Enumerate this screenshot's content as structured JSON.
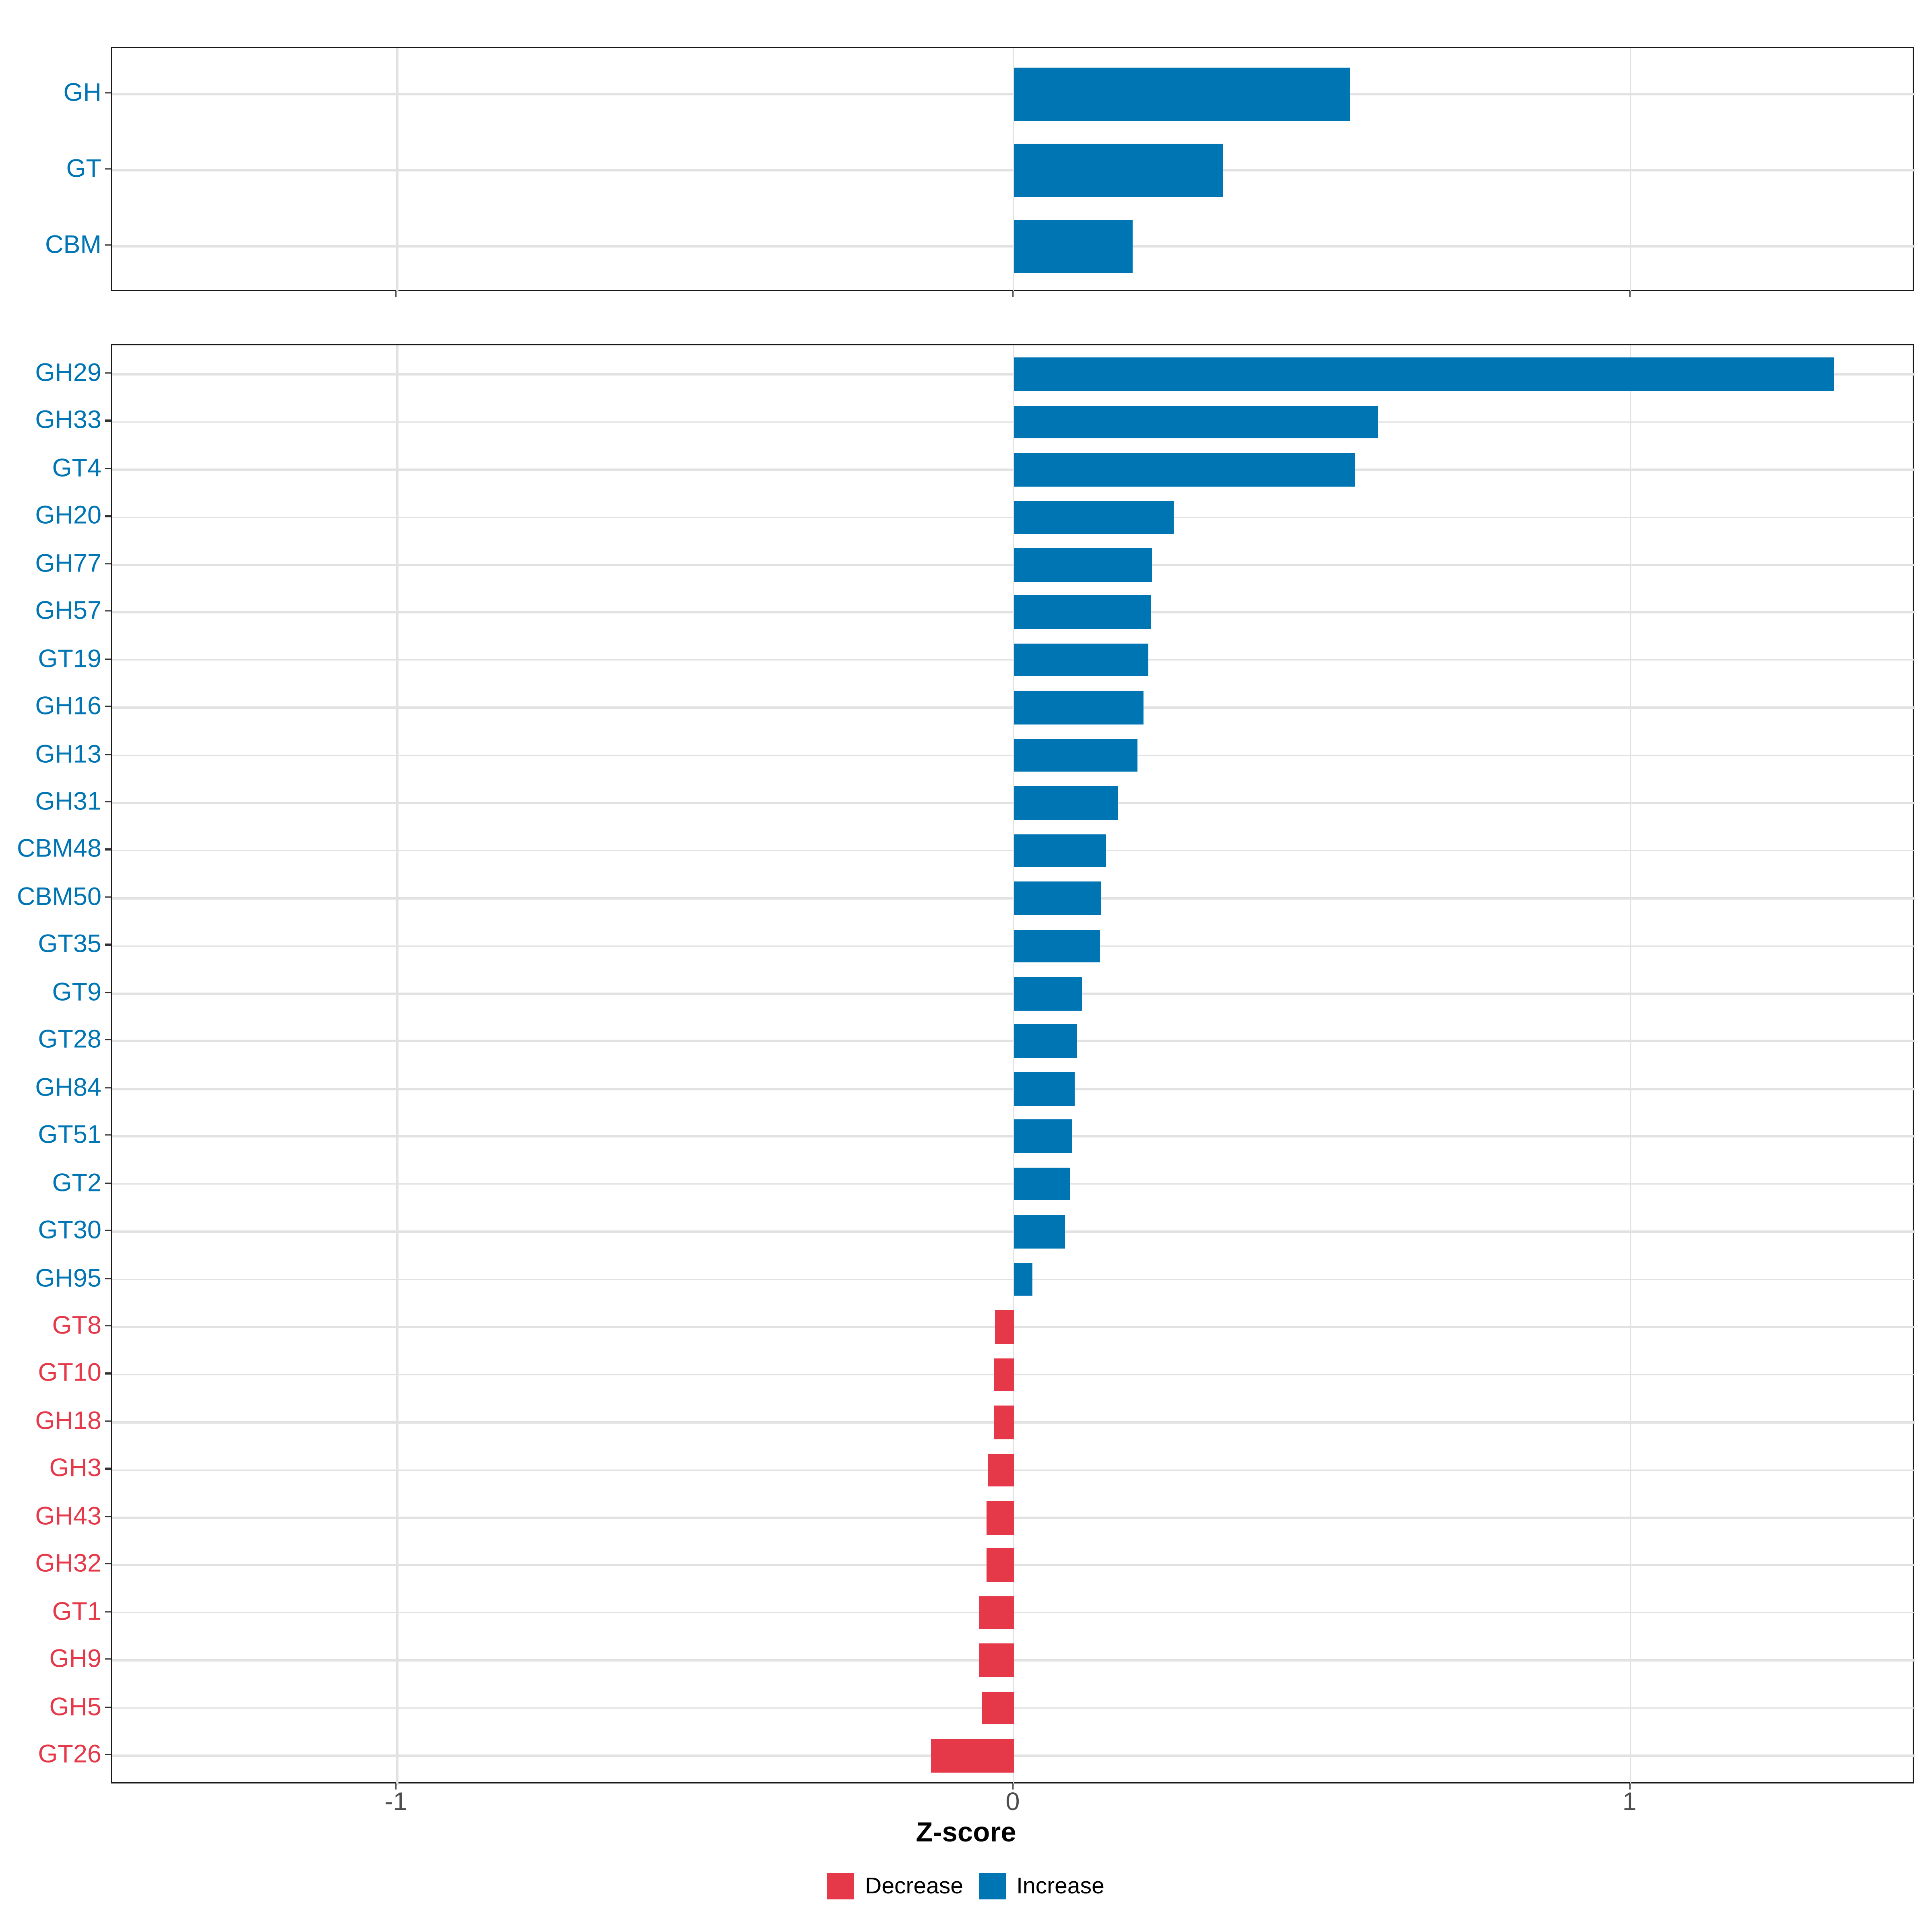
{
  "palette": {
    "increase": "#0075B4",
    "decrease": "#E5394A",
    "gridline": "#E2E2E2",
    "panel_border": "#1A1A1A",
    "tick_mark": "#333333",
    "axis_text": "#4D4D4D",
    "axis_title_color": "#000000",
    "legend_text": "#000000",
    "background": "#FFFFFF"
  },
  "x_axis": {
    "title": "Z-score",
    "tick_labels": [
      "-1",
      "0",
      "1"
    ],
    "tick_values": [
      -1,
      0,
      1
    ],
    "domain": [
      -1.462,
      1.462
    ]
  },
  "legend": {
    "items": [
      {
        "label": "Decrease",
        "direction": "decrease"
      },
      {
        "label": "Increase",
        "direction": "increase"
      }
    ]
  },
  "chart_data": [
    {
      "type": "bar",
      "orientation": "horizontal",
      "panel": "category-summary",
      "xlabel": "Z-score",
      "xlim": [
        -1.462,
        1.462
      ],
      "grid": true,
      "legend_position": "bottom",
      "categories": [
        "GH",
        "GT",
        "CBM"
      ],
      "values": [
        0.545,
        0.339,
        0.192
      ],
      "direction": [
        "increase",
        "increase",
        "increase"
      ]
    },
    {
      "type": "bar",
      "orientation": "horizontal",
      "panel": "cazyme-families",
      "xlabel": "Z-score",
      "xlim": [
        -1.462,
        1.462
      ],
      "grid": true,
      "legend_position": "bottom",
      "categories": [
        "GH29",
        "GH33",
        "GT4",
        "GH20",
        "GH77",
        "GH57",
        "GT19",
        "GH16",
        "GH13",
        "GH31",
        "CBM48",
        "CBM50",
        "GT35",
        "GT9",
        "GT28",
        "GH84",
        "GT51",
        "GT2",
        "GT30",
        "GH95",
        "GT8",
        "GT10",
        "GH18",
        "GH3",
        "GH43",
        "GH32",
        "GT1",
        "GH9",
        "GH5",
        "GT26"
      ],
      "values": [
        1.33,
        0.59,
        0.552,
        0.26,
        0.223,
        0.221,
        0.217,
        0.21,
        0.201,
        0.168,
        0.15,
        0.141,
        0.14,
        0.11,
        0.103,
        0.098,
        0.094,
        0.091,
        0.082,
        0.03,
        -0.03,
        -0.032,
        -0.033,
        -0.042,
        -0.045,
        -0.044,
        -0.056,
        -0.056,
        -0.053,
        -0.134
      ],
      "direction": [
        "increase",
        "increase",
        "increase",
        "increase",
        "increase",
        "increase",
        "increase",
        "increase",
        "increase",
        "increase",
        "increase",
        "increase",
        "increase",
        "increase",
        "increase",
        "increase",
        "increase",
        "increase",
        "increase",
        "increase",
        "decrease",
        "decrease",
        "decrease",
        "decrease",
        "decrease",
        "decrease",
        "decrease",
        "decrease",
        "decrease",
        "decrease"
      ]
    }
  ]
}
